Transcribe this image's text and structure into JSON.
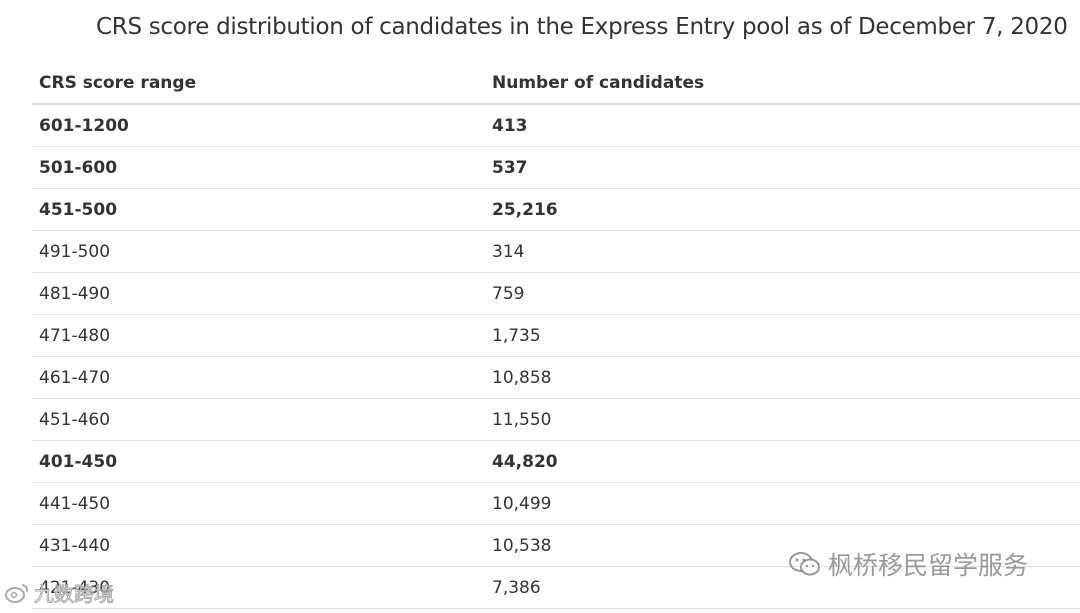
{
  "title": "CRS score distribution of candidates in the Express Entry pool as of December 7, 2020",
  "table": {
    "headers": [
      "CRS score range",
      "Number of candidates"
    ],
    "rows": [
      {
        "range": "601-1200",
        "count": "413",
        "bold": true
      },
      {
        "range": "501-600",
        "count": "537",
        "bold": true
      },
      {
        "range": "451-500",
        "count": "25,216",
        "bold": true
      },
      {
        "range": "491-500",
        "count": "314",
        "bold": false
      },
      {
        "range": "481-490",
        "count": "759",
        "bold": false
      },
      {
        "range": "471-480",
        "count": "1,735",
        "bold": false
      },
      {
        "range": "461-470",
        "count": "10,858",
        "bold": false
      },
      {
        "range": "451-460",
        "count": "11,550",
        "bold": false
      },
      {
        "range": "401-450",
        "count": "44,820",
        "bold": true
      },
      {
        "range": "441-450",
        "count": "10,499",
        "bold": false
      },
      {
        "range": "431-440",
        "count": "10,538",
        "bold": false
      },
      {
        "range": "421-430",
        "count": "7,386",
        "bold": false
      }
    ]
  },
  "watermarks": {
    "right_text": "枫桥移民留学服务",
    "right_icon": "wechat-icon",
    "left_text": "九数跨境",
    "left_icon": "weibo-icon"
  }
}
